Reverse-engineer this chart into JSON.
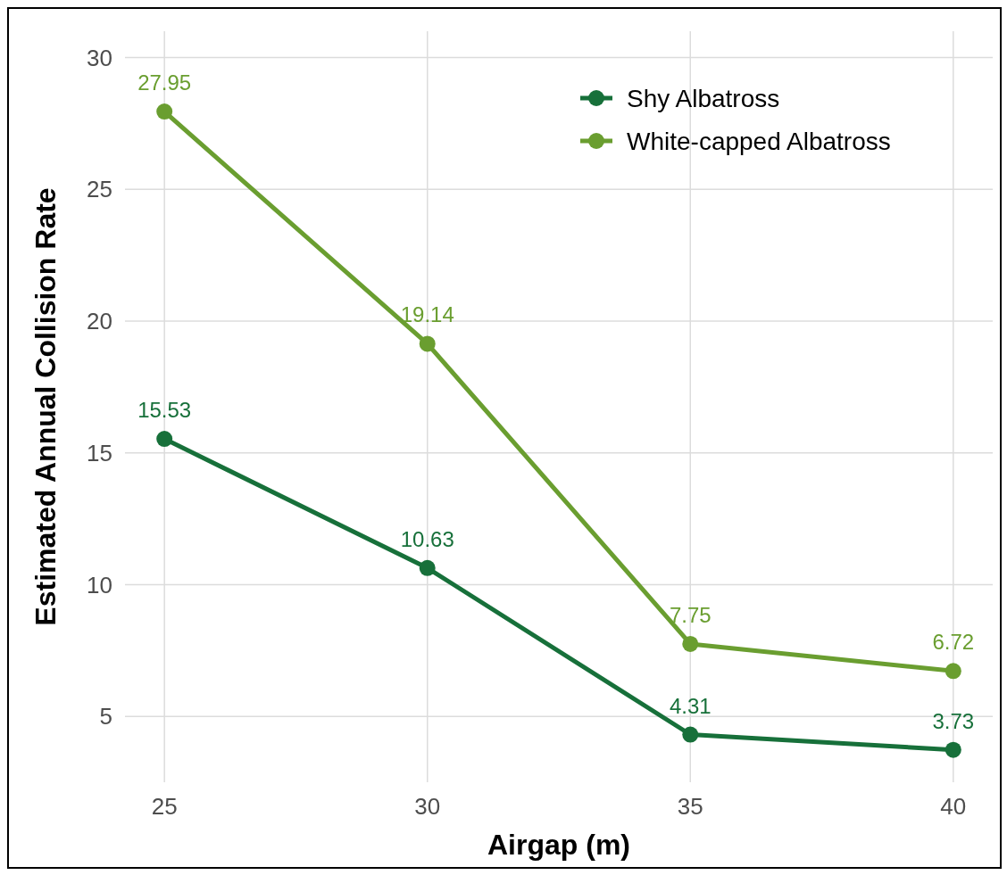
{
  "chart_data": {
    "type": "line",
    "xlabel": "Airgap (m)",
    "ylabel": "Estimated Annual Collision Rate",
    "x": [
      25,
      30,
      35,
      40
    ],
    "series": [
      {
        "name": "Shy Albatross",
        "color": "#17703a",
        "values": [
          15.53,
          10.63,
          4.31,
          3.73
        ]
      },
      {
        "name": "White-capped Albatross",
        "color": "#6a9e30",
        "values": [
          27.95,
          19.14,
          7.75,
          6.72
        ]
      }
    ],
    "xlim": [
      24.25,
      40.75
    ],
    "xticks": [
      25,
      30,
      35,
      40
    ],
    "ylim": [
      2.5,
      31
    ],
    "yticks": [
      5,
      10,
      15,
      20,
      25,
      30
    ],
    "grid": true,
    "legend": "top right",
    "marker": "circle",
    "line_style": "solid",
    "data_labels": true
  }
}
